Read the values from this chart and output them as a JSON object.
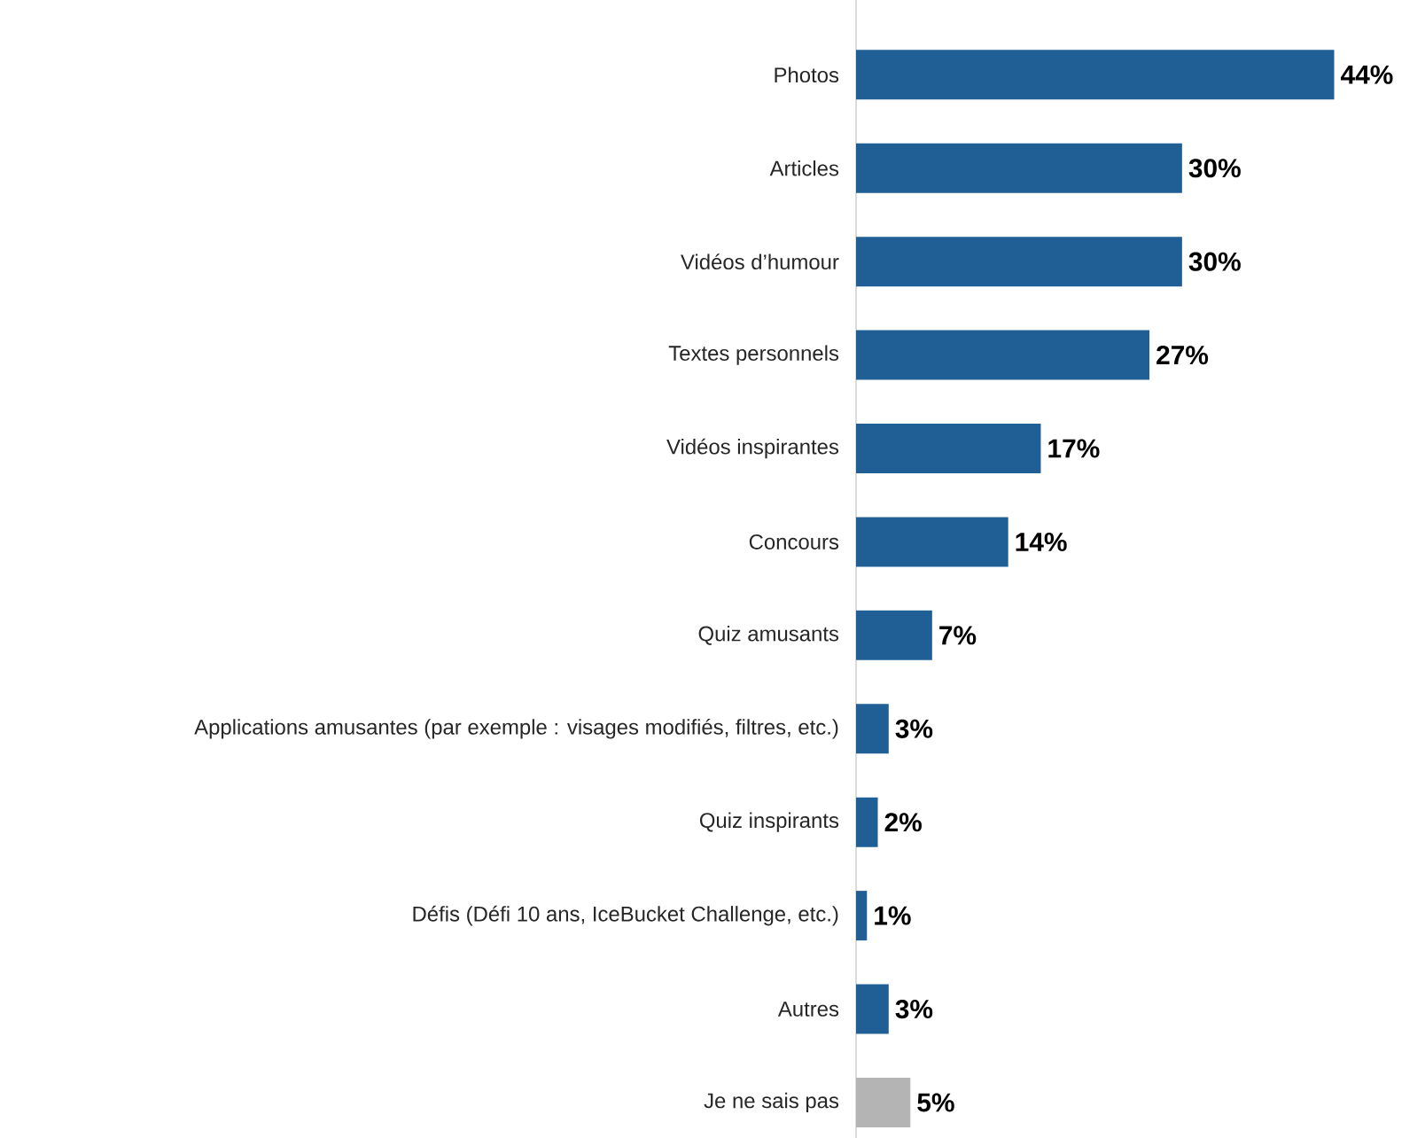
{
  "chart_data": {
    "type": "bar",
    "orientation": "horizontal",
    "categories": [
      "Photos",
      "Articles",
      "Vidéos d’humour",
      "Textes personnels",
      "Vidéos inspirantes",
      "Concours",
      "Quiz amusants",
      "Applications amusantes (par exemple : visages modifiés, filtres, etc.)",
      "Quiz inspirants",
      "Défis (Défi 10 ans, IceBucket Challenge, etc.)",
      "Autres",
      "Je ne sais pas"
    ],
    "values": [
      44,
      30,
      30,
      27,
      17,
      14,
      7,
      3,
      2,
      1,
      3,
      5
    ],
    "value_labels": [
      "44%",
      "30%",
      "30%",
      "27%",
      "17%",
      "14%",
      "7%",
      "3%",
      "2%",
      "1%",
      "3%",
      "5%"
    ],
    "colors": [
      "#1f5f96",
      "#1f5f96",
      "#1f5f96",
      "#1f5f96",
      "#1f5f96",
      "#1f5f96",
      "#1f5f96",
      "#1f5f96",
      "#1f5f96",
      "#1f5f96",
      "#1f5f96",
      "#b4b4b4"
    ]
  }
}
